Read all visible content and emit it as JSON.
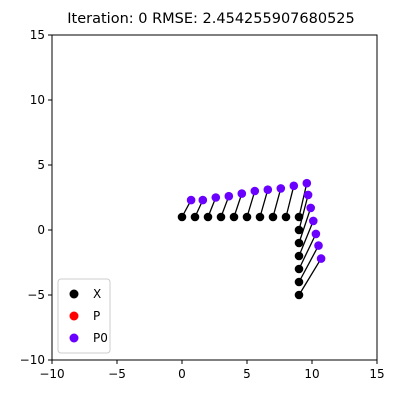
{
  "chart_data": {
    "type": "scatter",
    "title": "Iteration: 0  RMSE: 2.454255907680525",
    "xlabel": "",
    "ylabel": "",
    "xlim": [
      -10,
      15
    ],
    "ylim": [
      -10,
      15
    ],
    "xticks": [
      -10,
      -5,
      0,
      5,
      10,
      15
    ],
    "yticks": [
      -10,
      -5,
      0,
      5,
      10,
      15
    ],
    "xtick_labels": [
      "−10",
      "−5",
      "0",
      "5",
      "10",
      "15"
    ],
    "ytick_labels": [
      "−10",
      "−5",
      "0",
      "5",
      "10",
      "15"
    ],
    "grid": false,
    "legend": {
      "placement": "lower-left",
      "entries": [
        {
          "label": "X",
          "color": "#000000"
        },
        {
          "label": "P",
          "color": "#ff0000"
        },
        {
          "label": "P0",
          "color": "#6a00ff"
        }
      ]
    },
    "correspondence_lines": true,
    "series": [
      {
        "name": "X",
        "color": "#000000",
        "x": [
          0,
          1,
          2,
          3,
          4,
          5,
          6,
          7,
          8,
          9,
          9,
          9,
          9,
          9,
          9,
          9
        ],
        "y": [
          1,
          1,
          1,
          1,
          1,
          1,
          1,
          1,
          1,
          1,
          0,
          -1,
          -2,
          -3,
          -4,
          -5
        ]
      },
      {
        "name": "P0",
        "color": "#6a00ff",
        "x": [
          0.7,
          1.6,
          2.6,
          3.6,
          4.6,
          5.6,
          6.6,
          7.6,
          8.6,
          9.6,
          9.7,
          9.9,
          10.1,
          10.3,
          10.5,
          10.7
        ],
        "y": [
          2.3,
          2.3,
          2.5,
          2.6,
          2.8,
          3.0,
          3.1,
          3.2,
          3.4,
          3.6,
          2.7,
          1.7,
          0.7,
          -0.3,
          -1.2,
          -2.2
        ]
      }
    ]
  }
}
